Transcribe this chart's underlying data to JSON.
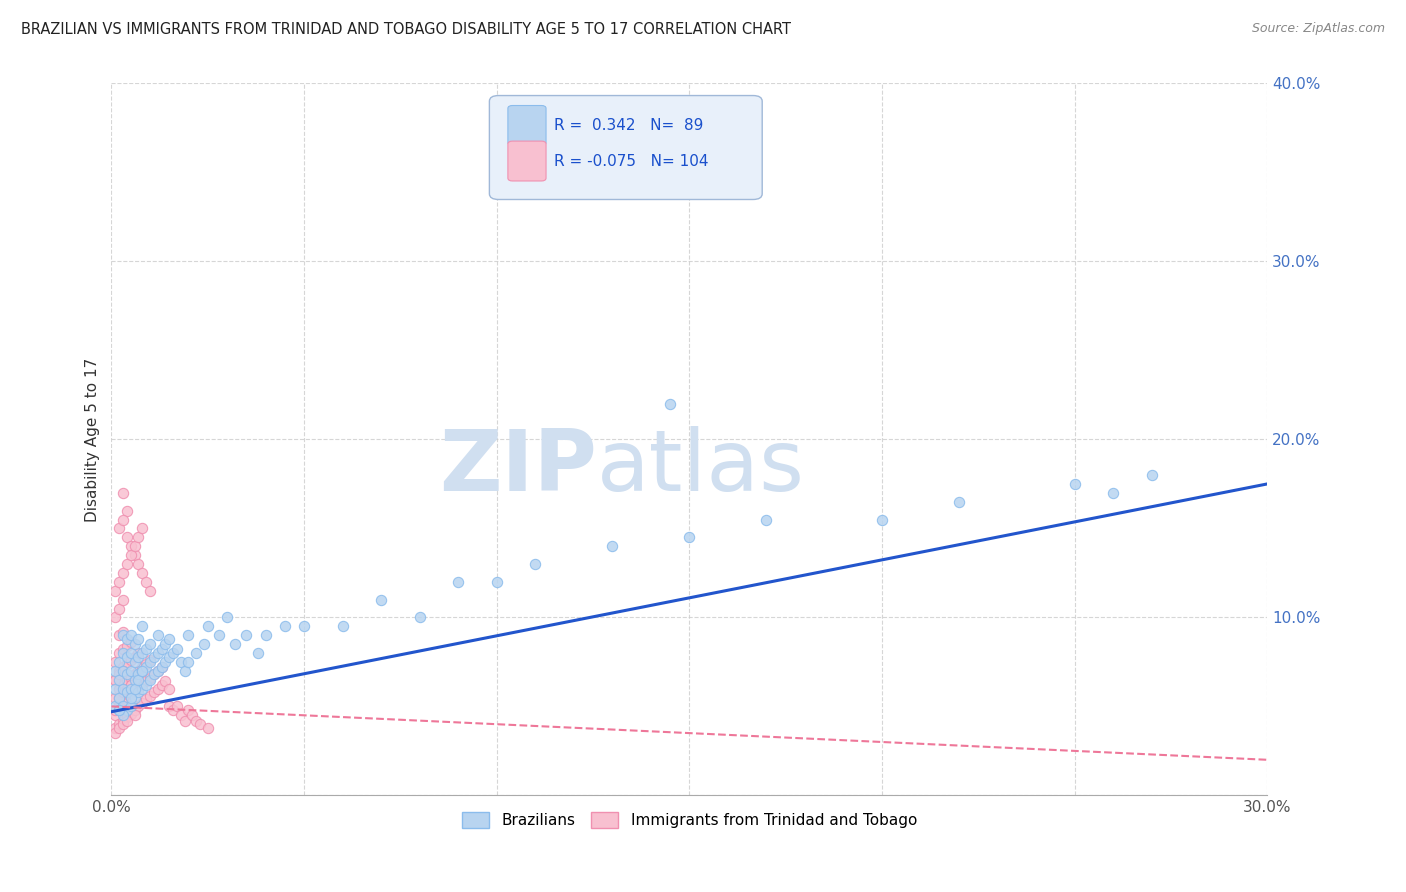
{
  "title": "BRAZILIAN VS IMMIGRANTS FROM TRINIDAD AND TOBAGO DISABILITY AGE 5 TO 17 CORRELATION CHART",
  "source": "Source: ZipAtlas.com",
  "ylabel": "Disability Age 5 to 17",
  "xlim": [
    0.0,
    0.3
  ],
  "ylim": [
    0.0,
    0.4
  ],
  "brazil_R": 0.342,
  "brazil_N": 89,
  "tt_R": -0.075,
  "tt_N": 104,
  "brazil_color": "#8BBCEC",
  "brazil_fill": "#B8D4F0",
  "tt_color": "#F090B0",
  "tt_fill": "#F8C0D0",
  "trend_blue": "#2255CC",
  "trend_pink": "#EE7799",
  "background": "#FFFFFF",
  "grid_color": "#CCCCCC",
  "watermark_zip": "ZIP",
  "watermark_atlas": "atlas",
  "watermark_color": "#D0DFF0",
  "legend_box_color": "#E8F0FA",
  "legend_box_edge": "#A0B8D8",
  "brazil_trend_x": [
    0.0,
    0.3
  ],
  "brazil_trend_y": [
    0.047,
    0.175
  ],
  "tt_trend_x": [
    0.0,
    0.3
  ],
  "tt_trend_y": [
    0.05,
    0.02
  ],
  "brazil_scatter_x": [
    0.001,
    0.001,
    0.001,
    0.002,
    0.002,
    0.002,
    0.002,
    0.003,
    0.003,
    0.003,
    0.003,
    0.003,
    0.004,
    0.004,
    0.004,
    0.004,
    0.004,
    0.005,
    0.005,
    0.005,
    0.005,
    0.005,
    0.006,
    0.006,
    0.006,
    0.006,
    0.007,
    0.007,
    0.007,
    0.007,
    0.008,
    0.008,
    0.008,
    0.008,
    0.009,
    0.009,
    0.009,
    0.01,
    0.01,
    0.01,
    0.011,
    0.011,
    0.012,
    0.012,
    0.012,
    0.013,
    0.013,
    0.014,
    0.014,
    0.015,
    0.015,
    0.016,
    0.017,
    0.018,
    0.019,
    0.02,
    0.02,
    0.022,
    0.024,
    0.025,
    0.028,
    0.03,
    0.032,
    0.035,
    0.038,
    0.04,
    0.045,
    0.05,
    0.06,
    0.07,
    0.08,
    0.09,
    0.1,
    0.11,
    0.13,
    0.15,
    0.17,
    0.2,
    0.22,
    0.25,
    0.145,
    0.26,
    0.27,
    0.005,
    0.003,
    0.006,
    0.007,
    0.002,
    0.008
  ],
  "brazil_scatter_y": [
    0.05,
    0.06,
    0.07,
    0.048,
    0.055,
    0.065,
    0.075,
    0.05,
    0.06,
    0.07,
    0.08,
    0.09,
    0.048,
    0.058,
    0.068,
    0.078,
    0.088,
    0.05,
    0.06,
    0.07,
    0.08,
    0.09,
    0.055,
    0.065,
    0.075,
    0.085,
    0.058,
    0.068,
    0.078,
    0.088,
    0.06,
    0.07,
    0.08,
    0.095,
    0.062,
    0.072,
    0.082,
    0.065,
    0.075,
    0.085,
    0.068,
    0.078,
    0.07,
    0.08,
    0.09,
    0.072,
    0.082,
    0.075,
    0.085,
    0.078,
    0.088,
    0.08,
    0.082,
    0.075,
    0.07,
    0.075,
    0.09,
    0.08,
    0.085,
    0.095,
    0.09,
    0.1,
    0.085,
    0.09,
    0.08,
    0.09,
    0.095,
    0.095,
    0.095,
    0.11,
    0.1,
    0.12,
    0.12,
    0.13,
    0.14,
    0.145,
    0.155,
    0.155,
    0.165,
    0.175,
    0.22,
    0.17,
    0.18,
    0.055,
    0.045,
    0.06,
    0.065,
    0.048,
    0.07
  ],
  "tt_scatter_x": [
    0.001,
    0.001,
    0.001,
    0.001,
    0.001,
    0.002,
    0.002,
    0.002,
    0.002,
    0.002,
    0.002,
    0.003,
    0.003,
    0.003,
    0.003,
    0.003,
    0.003,
    0.003,
    0.004,
    0.004,
    0.004,
    0.004,
    0.004,
    0.004,
    0.005,
    0.005,
    0.005,
    0.005,
    0.005,
    0.006,
    0.006,
    0.006,
    0.006,
    0.007,
    0.007,
    0.007,
    0.007,
    0.008,
    0.008,
    0.008,
    0.009,
    0.009,
    0.009,
    0.01,
    0.01,
    0.01,
    0.011,
    0.011,
    0.012,
    0.012,
    0.013,
    0.013,
    0.014,
    0.015,
    0.015,
    0.016,
    0.017,
    0.018,
    0.019,
    0.02,
    0.021,
    0.022,
    0.023,
    0.025,
    0.002,
    0.003,
    0.004,
    0.005,
    0.006,
    0.007,
    0.008,
    0.009,
    0.01,
    0.001,
    0.002,
    0.003,
    0.001,
    0.002,
    0.003,
    0.004,
    0.005,
    0.006,
    0.007,
    0.008,
    0.004,
    0.005,
    0.003,
    0.004,
    0.005,
    0.001,
    0.002,
    0.003,
    0.004,
    0.006,
    0.001,
    0.002,
    0.003,
    0.002,
    0.003,
    0.004,
    0.005,
    0.001,
    0.002,
    0.003
  ],
  "tt_scatter_y": [
    0.038,
    0.045,
    0.055,
    0.065,
    0.075,
    0.04,
    0.05,
    0.06,
    0.07,
    0.08,
    0.09,
    0.042,
    0.052,
    0.062,
    0.072,
    0.082,
    0.092,
    0.17,
    0.044,
    0.054,
    0.064,
    0.074,
    0.084,
    0.16,
    0.046,
    0.056,
    0.066,
    0.076,
    0.086,
    0.048,
    0.058,
    0.068,
    0.078,
    0.05,
    0.06,
    0.07,
    0.08,
    0.052,
    0.062,
    0.072,
    0.054,
    0.064,
    0.074,
    0.056,
    0.066,
    0.076,
    0.058,
    0.068,
    0.06,
    0.07,
    0.062,
    0.072,
    0.064,
    0.05,
    0.06,
    0.048,
    0.05,
    0.045,
    0.042,
    0.048,
    0.045,
    0.042,
    0.04,
    0.038,
    0.15,
    0.155,
    0.145,
    0.14,
    0.135,
    0.13,
    0.125,
    0.12,
    0.115,
    0.1,
    0.105,
    0.11,
    0.115,
    0.12,
    0.125,
    0.13,
    0.135,
    0.14,
    0.145,
    0.15,
    0.048,
    0.052,
    0.055,
    0.058,
    0.062,
    0.035,
    0.038,
    0.04,
    0.042,
    0.045,
    0.048,
    0.05,
    0.052,
    0.055,
    0.058,
    0.06,
    0.062,
    0.065,
    0.068,
    0.07
  ]
}
